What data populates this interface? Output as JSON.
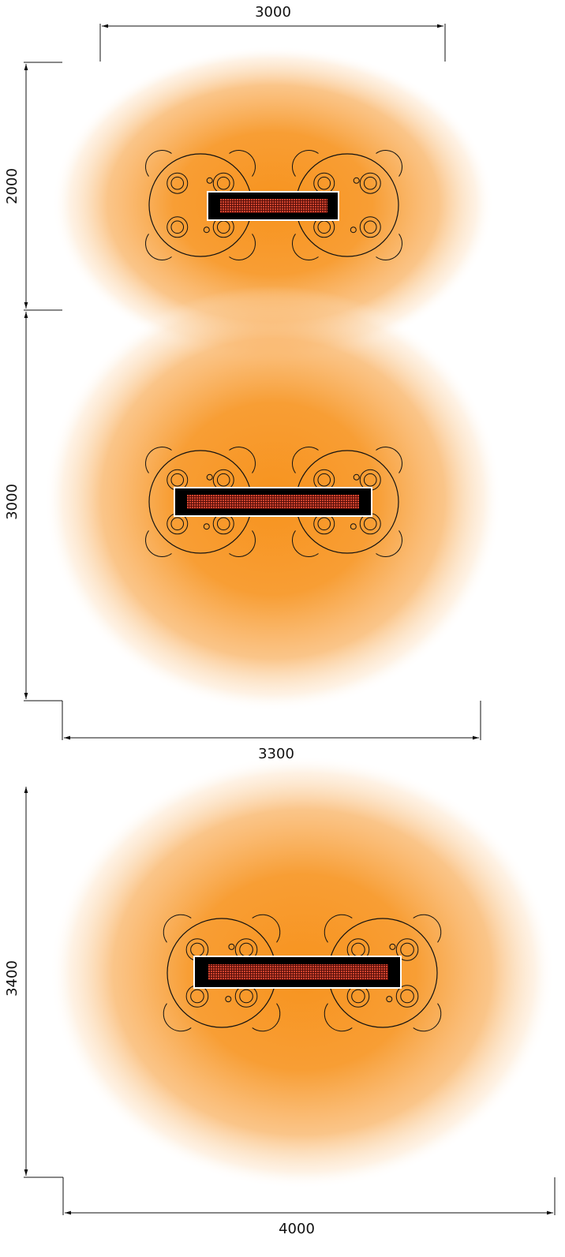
{
  "dimensions": {
    "top_width": "3000",
    "top_height": "2000",
    "middle_height": "3000",
    "middle_width": "3300",
    "bottom_height": "3400",
    "bottom_width": "4000"
  },
  "colors": {
    "heat_core": "#f7931e",
    "heater_body": "#000000",
    "heater_element": "#c0392b",
    "line": "#111111"
  }
}
